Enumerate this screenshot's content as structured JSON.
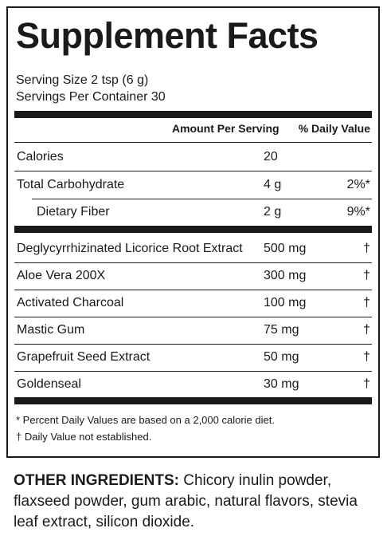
{
  "title": "Supplement Facts",
  "serving_size": "Serving Size 2 tsp (6 g)",
  "servings_per_container": "Servings Per Container 30",
  "header": {
    "amount": "Amount Per Serving",
    "daily_value": "% Daily Value"
  },
  "nutrients": [
    {
      "name": "Calories",
      "amount": "20",
      "dv": ""
    },
    {
      "name": "Total Carbohydrate",
      "amount": "4 g",
      "dv": "2%*"
    },
    {
      "name": "Dietary Fiber",
      "amount": "2 g",
      "dv": "9%*"
    }
  ],
  "ingredients": [
    {
      "name": "Deglycyrrhizinated Licorice Root Extract",
      "amount": "500 mg",
      "dv": "†"
    },
    {
      "name": "Aloe Vera 200X",
      "amount": "300 mg",
      "dv": "†"
    },
    {
      "name": "Activated Charcoal",
      "amount": "100 mg",
      "dv": "†"
    },
    {
      "name": "Mastic Gum",
      "amount": "75 mg",
      "dv": "†"
    },
    {
      "name": "Grapefruit Seed Extract",
      "amount": "50 mg",
      "dv": "†"
    },
    {
      "name": "Goldenseal",
      "amount": "30 mg",
      "dv": "†"
    }
  ],
  "footnotes": [
    "* Percent Daily Values are based on a 2,000 calorie diet.",
    "† Daily Value not established."
  ],
  "other_ingredients": {
    "label": "OTHER INGREDIENTS:",
    "text": " Chicory inulin powder, flaxseed powder, gum arabic, natural flavors, stevia leaf extract, silicon dioxide."
  }
}
